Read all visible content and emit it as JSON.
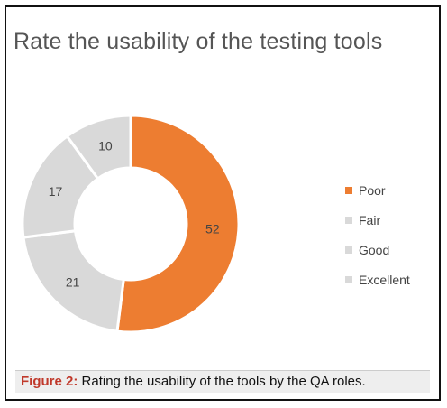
{
  "chart_data": {
    "type": "pie",
    "style": "donut",
    "title": "Rate the usability of the testing tools",
    "categories": [
      "Poor",
      "Fair",
      "Good",
      "Excellent"
    ],
    "values": [
      52,
      21,
      17,
      10
    ],
    "colors": [
      "#ed7d31",
      "#d9d9d9",
      "#d9d9d9",
      "#d9d9d9"
    ],
    "legend_position": "right"
  },
  "caption": {
    "label": "Figure 2:",
    "text": "Rating the usability of the tools by the QA roles."
  }
}
